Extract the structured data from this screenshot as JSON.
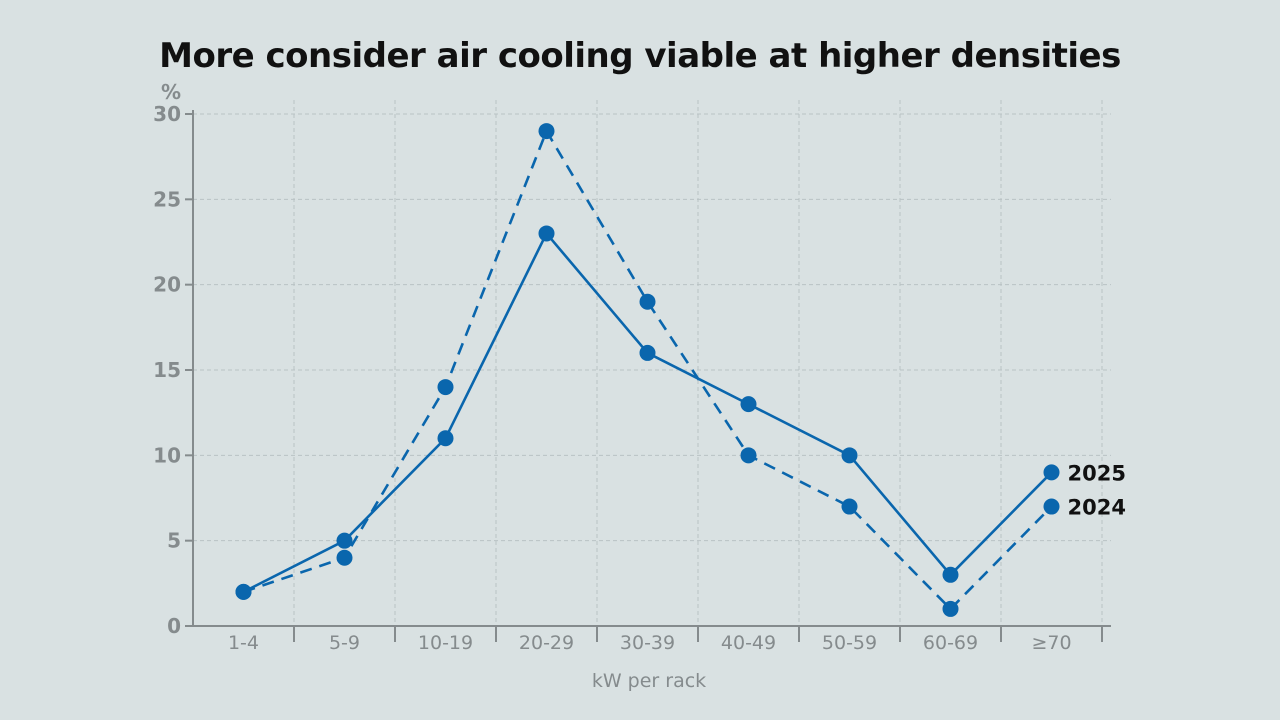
{
  "chart_data": {
    "type": "line",
    "title": "More consider air cooling viable at higher densities",
    "xlabel": "kW per rack",
    "ylabel": "%",
    "ylim": [
      0,
      30
    ],
    "yticks": [
      "0",
      "5",
      "10",
      "15",
      "20",
      "25",
      "30"
    ],
    "categories": [
      "1-4",
      "5-9",
      "10-19",
      "20-29",
      "30-39",
      "40-49",
      "50-59",
      "60-69",
      "≥70"
    ],
    "grid": true,
    "legend_placement": "end-of-line labels, right",
    "series": [
      {
        "name": "2025",
        "style": "solid",
        "values": [
          2,
          5,
          11,
          23,
          16,
          13,
          10,
          3,
          9
        ]
      },
      {
        "name": "2024",
        "style": "dashed",
        "values": [
          2,
          4,
          14,
          29,
          19,
          10,
          7,
          1,
          7
        ]
      }
    ],
    "color": "#0a66ad"
  }
}
